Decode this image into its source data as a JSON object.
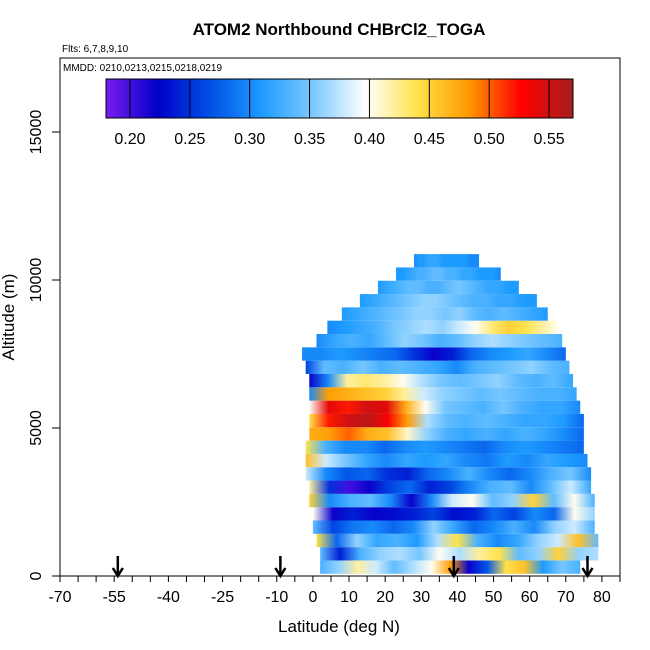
{
  "chart_data": {
    "type": "heatmap",
    "title": "ATOM2 Northbound CHBrCl2_TOGA",
    "flights_label": "Flts: 6,7,8,9,10",
    "dates_label": "MMDD: 0210,0213,0215,0218,0219",
    "xlabel": "Latitude (deg N)",
    "ylabel": "Altitude (m)",
    "xlim": [
      -70,
      85
    ],
    "ylim": [
      0,
      17500
    ],
    "x_ticks": [
      "-70",
      "-55",
      "-40",
      "-25",
      "-10",
      "0",
      "10",
      "20",
      "30",
      "40",
      "50",
      "60",
      "70",
      "80"
    ],
    "x_tick_values": [
      -70,
      -55,
      -40,
      -25,
      -10,
      0,
      10,
      20,
      30,
      40,
      50,
      60,
      70,
      80
    ],
    "y_ticks": [
      "0",
      "5000",
      "10000",
      "15000"
    ],
    "y_tick_values": [
      0,
      5000,
      10000,
      15000
    ],
    "colorbar": {
      "range": [
        0.18,
        0.57
      ],
      "tick_labels": [
        "0.20",
        "0.25",
        "0.30",
        "0.35",
        "0.40",
        "0.45",
        "0.50",
        "0.55"
      ],
      "tick_values": [
        0.2,
        0.25,
        0.3,
        0.35,
        0.4,
        0.45,
        0.5,
        0.55
      ],
      "colors": [
        "#7a1cf0",
        "#0000c8",
        "#0050e6",
        "#1e9bff",
        "#7dcaff",
        "#ffffff",
        "#ffe24a",
        "#ff9900",
        "#ff0000",
        "#a51e1e"
      ]
    },
    "profile_arrows_lat": [
      -54,
      -9,
      39,
      76
    ],
    "layers": [
      {
        "alt": 300,
        "lat_start": 2,
        "lat_end": 74,
        "values": [
          0.33,
          0.36,
          0.42,
          0.38,
          0.34,
          0.37,
          0.4,
          0.48,
          0.22,
          0.27,
          0.44,
          0.46,
          0.31,
          0.35,
          0.33
        ]
      },
      {
        "alt": 750,
        "lat_start": 2,
        "lat_end": 79,
        "values": [
          0.34,
          0.24,
          0.33,
          0.36,
          0.37,
          0.35,
          0.4,
          0.37,
          0.42,
          0.44,
          0.34,
          0.36,
          0.45,
          0.36,
          0.37
        ]
      },
      {
        "alt": 1200,
        "lat_start": 1,
        "lat_end": 79,
        "values": [
          0.44,
          0.28,
          0.36,
          0.32,
          0.33,
          0.31,
          0.37,
          0.44,
          0.33,
          0.3,
          0.32,
          0.36,
          0.38,
          0.46,
          0.34
        ]
      },
      {
        "alt": 1650,
        "lat_start": 0,
        "lat_end": 78,
        "values": [
          0.34,
          0.26,
          0.29,
          0.3,
          0.28,
          0.3,
          0.36,
          0.32,
          0.28,
          0.3,
          0.33,
          0.3,
          0.36,
          0.38,
          0.33
        ]
      },
      {
        "alt": 2100,
        "lat_start": 0,
        "lat_end": 78,
        "values": [
          0.4,
          0.22,
          0.24,
          0.22,
          0.23,
          0.24,
          0.26,
          0.23,
          0.24,
          0.28,
          0.26,
          0.3,
          0.28,
          0.4,
          0.36
        ]
      },
      {
        "alt": 2550,
        "lat_start": -1,
        "lat_end": 78,
        "values": [
          0.45,
          0.3,
          0.33,
          0.34,
          0.3,
          0.22,
          0.3,
          0.38,
          0.4,
          0.34,
          0.36,
          0.45,
          0.34,
          0.4,
          0.33
        ]
      },
      {
        "alt": 3000,
        "lat_start": -1,
        "lat_end": 77,
        "values": [
          0.42,
          0.25,
          0.2,
          0.22,
          0.26,
          0.28,
          0.24,
          0.26,
          0.3,
          0.33,
          0.34,
          0.3,
          0.34,
          0.38,
          0.32
        ]
      },
      {
        "alt": 3450,
        "lat_start": -2,
        "lat_end": 77,
        "values": [
          0.38,
          0.3,
          0.27,
          0.28,
          0.25,
          0.24,
          0.28,
          0.3,
          0.33,
          0.3,
          0.28,
          0.3,
          0.33,
          0.35,
          0.3
        ]
      },
      {
        "alt": 3900,
        "lat_start": -2,
        "lat_end": 76,
        "values": [
          0.46,
          0.38,
          0.35,
          0.32,
          0.3,
          0.32,
          0.31,
          0.32,
          0.3,
          0.29,
          0.31,
          0.3,
          0.32,
          0.31,
          0.3
        ]
      },
      {
        "alt": 4350,
        "lat_start": -2,
        "lat_end": 75,
        "values": [
          0.44,
          0.33,
          0.3,
          0.3,
          0.28,
          0.3,
          0.31,
          0.3,
          0.29,
          0.28,
          0.3,
          0.31,
          0.3,
          0.29,
          0.28
        ]
      },
      {
        "alt": 4800,
        "lat_start": -1,
        "lat_end": 75,
        "values": [
          0.47,
          0.48,
          0.5,
          0.47,
          0.46,
          0.41,
          0.36,
          0.33,
          0.32,
          0.33,
          0.32,
          0.33,
          0.32,
          0.3,
          0.28
        ]
      },
      {
        "alt": 5250,
        "lat_start": -1,
        "lat_end": 75,
        "values": [
          0.44,
          0.52,
          0.55,
          0.56,
          0.53,
          0.48,
          0.37,
          0.34,
          0.33,
          0.34,
          0.33,
          0.32,
          0.32,
          0.31,
          0.28
        ]
      },
      {
        "alt": 5700,
        "lat_start": -1,
        "lat_end": 74,
        "values": [
          0.4,
          0.54,
          0.52,
          0.55,
          0.54,
          0.47,
          0.4,
          0.35,
          0.34,
          0.33,
          0.35,
          0.33,
          0.32,
          0.32,
          0.3
        ]
      },
      {
        "alt": 6150,
        "lat_start": -1,
        "lat_end": 73,
        "values": [
          0.3,
          0.48,
          0.47,
          0.46,
          0.45,
          0.42,
          0.38,
          0.36,
          0.35,
          0.34,
          0.35,
          0.34,
          0.33,
          0.33,
          0.32
        ]
      },
      {
        "alt": 6600,
        "lat_start": -1,
        "lat_end": 72,
        "values": [
          0.22,
          0.3,
          0.42,
          0.43,
          0.42,
          0.4,
          0.37,
          0.35,
          0.34,
          0.35,
          0.36,
          0.34,
          0.33,
          0.34,
          0.32
        ]
      },
      {
        "alt": 7050,
        "lat_start": -2,
        "lat_end": 71,
        "values": [
          0.26,
          0.34,
          0.33,
          0.35,
          0.33,
          0.34,
          0.33,
          0.32,
          0.3,
          0.33,
          0.34,
          0.35,
          0.36,
          0.34,
          0.33
        ]
      },
      {
        "alt": 7500,
        "lat_start": -3,
        "lat_end": 70,
        "values": [
          0.3,
          0.3,
          0.31,
          0.3,
          0.29,
          0.28,
          0.25,
          0.22,
          0.24,
          0.28,
          0.3,
          0.31,
          0.32,
          0.3,
          0.28
        ]
      },
      {
        "alt": 7950,
        "lat_start": 1,
        "lat_end": 69,
        "values": [
          0.3,
          0.32,
          0.33,
          0.32,
          0.34,
          0.36,
          0.35,
          0.33,
          0.34,
          0.36,
          0.37,
          0.36,
          0.35,
          0.34,
          0.33
        ]
      },
      {
        "alt": 8400,
        "lat_start": 4,
        "lat_end": 68,
        "values": [
          0.3,
          0.31,
          0.32,
          0.33,
          0.35,
          0.36,
          0.37,
          0.36,
          0.38,
          0.4,
          0.43,
          0.45,
          0.44,
          0.42,
          0.4
        ]
      },
      {
        "alt": 8850,
        "lat_start": 8,
        "lat_end": 65,
        "values": [
          0.31,
          0.32,
          0.33,
          0.34,
          0.35,
          0.36,
          0.36,
          0.35,
          0.36,
          0.34,
          0.33,
          0.34,
          0.33,
          0.32,
          0.31
        ]
      },
      {
        "alt": 9300,
        "lat_start": 13,
        "lat_end": 62,
        "values": [
          0.31,
          0.32,
          0.33,
          0.34,
          0.35,
          0.36,
          0.36,
          0.35,
          0.34,
          0.33,
          0.33,
          0.32,
          0.32,
          0.31,
          0.31
        ]
      },
      {
        "alt": 9750,
        "lat_start": 18,
        "lat_end": 57,
        "values": [
          0.31,
          0.32,
          0.33,
          0.34,
          0.34,
          0.33,
          0.33,
          0.34,
          0.35,
          0.34,
          0.33,
          0.32,
          0.32,
          0.31,
          0.31
        ]
      },
      {
        "alt": 10200,
        "lat_start": 23,
        "lat_end": 52,
        "values": [
          0.31,
          0.31,
          0.32,
          0.33,
          0.33,
          0.34,
          0.34,
          0.33,
          0.33,
          0.32,
          0.32,
          0.31,
          0.31,
          0.31,
          0.3
        ]
      },
      {
        "alt": 10650,
        "lat_start": 28,
        "lat_end": 46,
        "values": [
          0.3,
          0.31,
          0.31,
          0.32,
          0.32,
          0.32,
          0.31,
          0.31,
          0.31,
          0.31,
          0.31,
          0.31,
          0.3,
          0.3,
          0.3
        ]
      }
    ]
  }
}
